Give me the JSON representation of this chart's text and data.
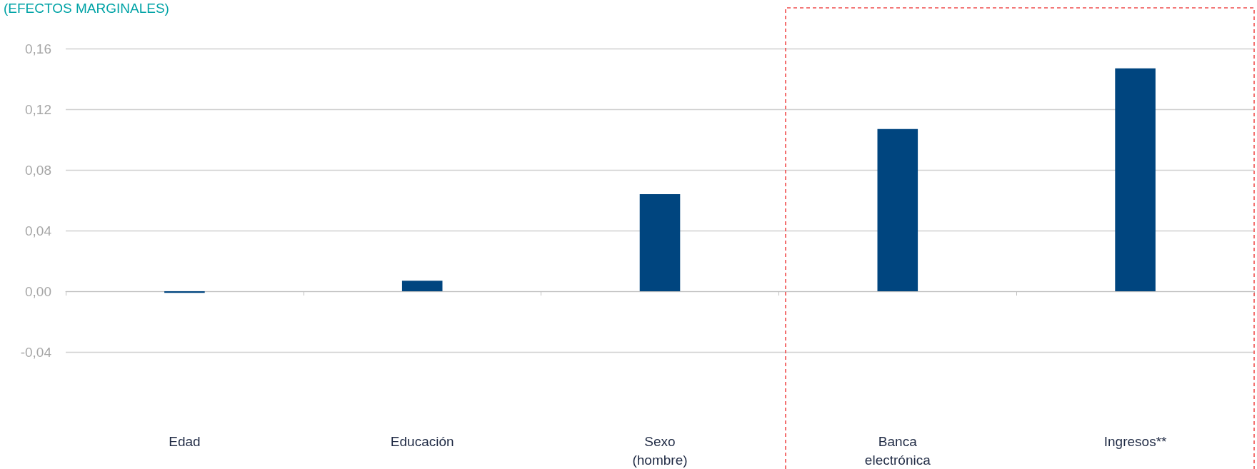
{
  "chart_data": {
    "type": "bar",
    "ylabel": "(EFECTOS MARGINALES)",
    "categories": [
      "Edad",
      "Educación",
      "Sexo\n(hombre)",
      "Banca\nelectrónica",
      "Ingresos**"
    ],
    "values": [
      -0.001,
      0.007,
      0.064,
      0.107,
      0.147
    ],
    "color": "#00457f",
    "ylim": [
      -0.04,
      0.16
    ],
    "yticks": [
      {
        "value": -0.04,
        "label": "-0,04"
      },
      {
        "value": 0,
        "label": "0,00"
      },
      {
        "value": 0.04,
        "label": "0,04"
      },
      {
        "value": 0.08,
        "label": "0,08"
      },
      {
        "value": 0.12,
        "label": "0,12"
      },
      {
        "value": 0.16,
        "label": "0,16"
      }
    ],
    "grid": "y"
  }
}
